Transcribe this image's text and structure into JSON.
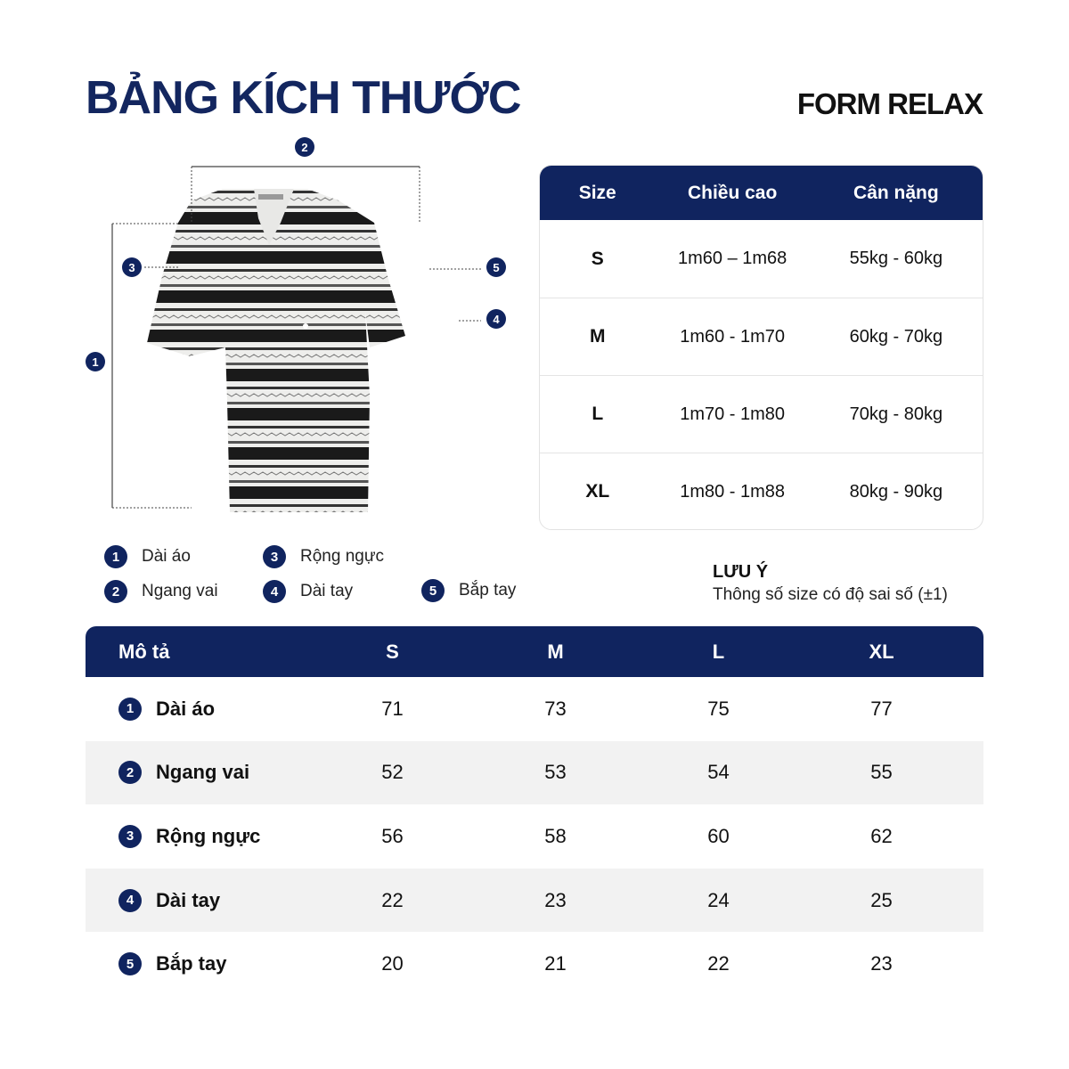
{
  "title": "BẢNG KÍCH THƯỚC",
  "form": "FORM RELAX",
  "colors": {
    "navy": "#10245f",
    "row_alt": "#f2f2f2"
  },
  "size_table": {
    "headers": [
      "Size",
      "Chiều cao",
      "Cân nặng"
    ],
    "rows": [
      {
        "size": "S",
        "height": "1m60 – 1m68",
        "weight": "55kg - 60kg"
      },
      {
        "size": "M",
        "height": "1m60 - 1m70",
        "weight": "60kg - 70kg"
      },
      {
        "size": "L",
        "height": "1m70 - 1m80",
        "weight": "70kg - 80kg"
      },
      {
        "size": "XL",
        "height": "1m80 - 1m88",
        "weight": "80kg - 90kg"
      }
    ]
  },
  "diagram": {
    "markers": [
      "1",
      "2",
      "3",
      "4",
      "5"
    ],
    "image": "striped-short-sleeve-shirt"
  },
  "legend": [
    {
      "n": "1",
      "label": "Dài áo"
    },
    {
      "n": "2",
      "label": "Ngang vai"
    },
    {
      "n": "3",
      "label": "Rộng ngực"
    },
    {
      "n": "4",
      "label": "Dài tay"
    },
    {
      "n": "5",
      "label": "Bắp tay"
    }
  ],
  "note": {
    "title": "LƯU Ý",
    "text": "Thông số size có độ sai số (±1)"
  },
  "measure_table": {
    "headers": [
      "Mô tả",
      "S",
      "M",
      "L",
      "XL"
    ],
    "rows": [
      {
        "n": "1",
        "label": "Dài áo",
        "values": [
          "71",
          "73",
          "75",
          "77"
        ]
      },
      {
        "n": "2",
        "label": "Ngang vai",
        "values": [
          "52",
          "53",
          "54",
          "55"
        ]
      },
      {
        "n": "3",
        "label": "Rộng ngực",
        "values": [
          "56",
          "58",
          "60",
          "62"
        ]
      },
      {
        "n": "4",
        "label": "Dài tay",
        "values": [
          "22",
          "23",
          "24",
          "25"
        ]
      },
      {
        "n": "5",
        "label": "Bắp tay",
        "values": [
          "20",
          "21",
          "22",
          "23"
        ]
      }
    ]
  }
}
